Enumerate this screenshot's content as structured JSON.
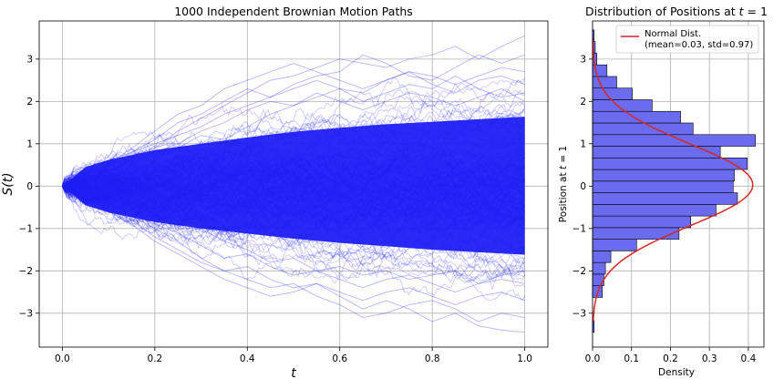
{
  "chart_data": [
    {
      "type": "line",
      "title": "1000 Independent Brownian Motion Paths",
      "xlabel": "t",
      "ylabel": "S(t)",
      "xlim": [
        -0.05,
        1.05
      ],
      "ylim": [
        -3.8,
        3.9
      ],
      "xticks": [
        0.0,
        0.2,
        0.4,
        0.6,
        0.8,
        1.0
      ],
      "xtick_labels": [
        "0.0",
        "0.2",
        "0.4",
        "0.6",
        "0.8",
        "1.0"
      ],
      "yticks": [
        -3,
        -2,
        -1,
        0,
        1,
        2,
        3
      ],
      "ytick_labels": [
        "−3",
        "−2",
        "−1",
        "0",
        "1",
        "2",
        "3"
      ],
      "grid": true,
      "n_paths": 1000,
      "path_color": "#1f1ff5",
      "path_alpha": 0.2,
      "core_envelope": {
        "t": [
          0.0,
          0.05,
          0.1,
          0.2,
          0.3,
          0.4,
          0.5,
          0.6,
          0.7,
          0.8,
          0.9,
          1.0
        ],
        "upper": [
          0.0,
          0.45,
          0.62,
          0.85,
          1.0,
          1.15,
          1.28,
          1.38,
          1.46,
          1.52,
          1.58,
          1.64
        ],
        "lower": [
          0.0,
          -0.45,
          -0.62,
          -0.85,
          -1.0,
          -1.12,
          -1.24,
          -1.34,
          -1.42,
          -1.5,
          -1.56,
          -1.62
        ]
      },
      "sample_paths": [
        {
          "t": [
            0,
            0.05,
            0.1,
            0.15,
            0.2,
            0.25,
            0.3,
            0.35,
            0.4,
            0.45,
            0.5,
            0.55,
            0.6,
            0.65,
            0.7,
            0.75,
            0.8,
            0.85,
            0.9,
            0.95,
            1.0
          ],
          "y": [
            0,
            0.2,
            0.45,
            0.7,
            0.9,
            1.3,
            1.6,
            1.9,
            2.2,
            2.5,
            2.6,
            2.8,
            3.0,
            2.9,
            2.8,
            3.0,
            3.1,
            3.3,
            3.0,
            3.3,
            3.55
          ]
        },
        {
          "t": [
            0,
            0.05,
            0.1,
            0.15,
            0.2,
            0.25,
            0.3,
            0.35,
            0.4,
            0.45,
            0.5,
            0.55,
            0.6,
            0.65,
            0.7,
            0.75,
            0.8,
            0.85,
            0.9,
            0.95,
            1.0
          ],
          "y": [
            0,
            0.3,
            0.6,
            0.8,
            1.1,
            1.5,
            1.7,
            2.0,
            2.3,
            2.1,
            2.4,
            2.6,
            2.7,
            3.1,
            2.9,
            2.6,
            2.5,
            2.8,
            3.1,
            2.9,
            3.1
          ]
        },
        {
          "t": [
            0,
            0.05,
            0.1,
            0.15,
            0.2,
            0.25,
            0.3,
            0.35,
            0.4,
            0.45,
            0.5,
            0.55,
            0.6,
            0.65,
            0.7,
            0.75,
            0.8,
            0.85,
            0.9,
            0.95,
            1.0
          ],
          "y": [
            0,
            0.25,
            0.5,
            0.9,
            1.3,
            1.7,
            1.9,
            2.3,
            2.5,
            2.7,
            2.9,
            2.7,
            2.5,
            2.3,
            2.5,
            2.7,
            2.6,
            2.4,
            2.6,
            2.8,
            2.7
          ]
        },
        {
          "t": [
            0,
            0.05,
            0.1,
            0.15,
            0.2,
            0.25,
            0.3,
            0.35,
            0.4,
            0.45,
            0.5,
            0.55,
            0.6,
            0.65,
            0.7,
            0.75,
            0.8,
            0.85,
            0.9,
            0.95,
            1.0
          ],
          "y": [
            0,
            0.15,
            0.35,
            0.6,
            0.8,
            1.0,
            1.3,
            1.5,
            1.8,
            2.0,
            1.9,
            2.1,
            2.3,
            2.2,
            2.5,
            2.7,
            2.4,
            2.2,
            2.5,
            2.6,
            2.4
          ]
        },
        {
          "t": [
            0,
            0.05,
            0.1,
            0.15,
            0.2,
            0.25,
            0.3,
            0.35,
            0.4,
            0.45,
            0.5,
            0.55,
            0.6,
            0.65,
            0.7,
            0.75,
            0.8,
            0.85,
            0.9,
            0.95,
            1.0
          ],
          "y": [
            0,
            0.3,
            0.5,
            0.8,
            1.0,
            1.2,
            1.4,
            1.7,
            1.9,
            2.1,
            2.3,
            2.5,
            2.3,
            2.0,
            2.2,
            2.4,
            2.3,
            2.6,
            2.3,
            2.1,
            2.2
          ]
        },
        {
          "t": [
            0,
            0.05,
            0.1,
            0.15,
            0.2,
            0.25,
            0.3,
            0.35,
            0.4,
            0.45,
            0.5,
            0.55,
            0.6,
            0.65,
            0.7,
            0.75,
            0.8,
            0.85,
            0.9,
            0.95,
            1.0
          ],
          "y": [
            0,
            -0.2,
            -0.45,
            -0.7,
            -1.0,
            -1.3,
            -1.7,
            -2.0,
            -1.9,
            -2.2,
            -2.4,
            -2.3,
            -2.6,
            -2.9,
            -2.7,
            -2.9,
            -3.2,
            -3.0,
            -3.3,
            -3.4,
            -3.45
          ]
        },
        {
          "t": [
            0,
            0.05,
            0.1,
            0.15,
            0.2,
            0.25,
            0.3,
            0.35,
            0.4,
            0.45,
            0.5,
            0.55,
            0.6,
            0.65,
            0.7,
            0.75,
            0.8,
            0.85,
            0.9,
            0.95,
            1.0
          ],
          "y": [
            0,
            -0.3,
            -0.5,
            -0.8,
            -1.2,
            -1.5,
            -1.8,
            -2.0,
            -2.2,
            -2.4,
            -2.3,
            -2.6,
            -2.8,
            -3.1,
            -3.0,
            -2.8,
            -2.7,
            -2.9,
            -3.2,
            -3.0,
            -3.1
          ]
        },
        {
          "t": [
            0,
            0.05,
            0.1,
            0.15,
            0.2,
            0.25,
            0.3,
            0.35,
            0.4,
            0.45,
            0.5,
            0.55,
            0.6,
            0.65,
            0.7,
            0.75,
            0.8,
            0.85,
            0.9,
            0.95,
            1.0
          ],
          "y": [
            0,
            -0.25,
            -0.6,
            -0.9,
            -1.3,
            -1.6,
            -1.9,
            -2.2,
            -2.4,
            -2.6,
            -2.5,
            -2.3,
            -2.5,
            -2.7,
            -2.5,
            -2.4,
            -2.6,
            -2.8,
            -2.6,
            -2.5,
            -2.7
          ]
        },
        {
          "t": [
            0,
            0.05,
            0.1,
            0.15,
            0.2,
            0.25,
            0.3,
            0.35,
            0.4,
            0.45,
            0.5,
            0.55,
            0.6,
            0.65,
            0.7,
            0.75,
            0.8,
            0.85,
            0.9,
            0.95,
            1.0
          ],
          "y": [
            0,
            -0.15,
            -0.4,
            -0.6,
            -0.9,
            -1.1,
            -1.4,
            -1.7,
            -1.6,
            -1.9,
            -2.1,
            -2.0,
            -2.2,
            -2.4,
            -2.2,
            -2.1,
            -2.3,
            -2.5,
            -2.3,
            -2.2,
            -2.3
          ]
        },
        {
          "t": [
            0,
            0.05,
            0.1,
            0.15,
            0.2,
            0.25,
            0.3,
            0.35,
            0.4,
            0.45,
            0.5,
            0.55,
            0.6,
            0.65,
            0.7,
            0.75,
            0.8,
            0.85,
            0.9,
            0.95,
            1.0
          ],
          "y": [
            0,
            0.2,
            0.4,
            0.3,
            0.6,
            0.9,
            1.2,
            1.1,
            1.4,
            1.7,
            1.9,
            2.2,
            2.0,
            1.8,
            2.0,
            2.2,
            2.1,
            1.9,
            2.1,
            2.3,
            2.0
          ]
        },
        {
          "t": [
            0,
            0.05,
            0.1,
            0.15,
            0.2,
            0.25,
            0.3,
            0.35,
            0.4,
            0.45,
            0.5,
            0.55,
            0.6,
            0.65,
            0.7,
            0.75,
            0.8,
            0.85,
            0.9,
            0.95,
            1.0
          ],
          "y": [
            0,
            -0.2,
            -0.3,
            -0.5,
            -0.8,
            -0.7,
            -1.0,
            -1.3,
            -1.5,
            -1.8,
            -1.7,
            -2.0,
            -1.9,
            -2.1,
            -2.0,
            -2.2,
            -2.1,
            -2.0,
            -2.3,
            -2.1,
            -2.0
          ]
        }
      ]
    },
    {
      "type": "bar",
      "orientation": "horizontal",
      "title": "Distribution of Positions at t = 1",
      "xlabel": "Density",
      "ylabel": "Position at t = 1",
      "xlim": [
        0,
        0.44
      ],
      "ylim": [
        -3.8,
        3.9
      ],
      "xticks": [
        0.0,
        0.1,
        0.2,
        0.3,
        0.4
      ],
      "xtick_labels": [
        "0.0",
        "0.1",
        "0.2",
        "0.3",
        "0.4"
      ],
      "yticks": [
        -3,
        -2,
        -1,
        0,
        1,
        2,
        3
      ],
      "ytick_labels": [
        "−3",
        "−2",
        "−1",
        "0",
        "1",
        "2",
        "3"
      ],
      "grid": true,
      "bar_color": "#6b6bf0",
      "bar_edge_color": "#000000",
      "bins_start": -3.45,
      "bin_width": 0.2745,
      "densities": [
        0.004,
        0.0,
        0.0,
        0.025,
        0.029,
        0.033,
        0.047,
        0.113,
        0.222,
        0.252,
        0.317,
        0.372,
        0.361,
        0.364,
        0.397,
        0.328,
        0.418,
        0.258,
        0.226,
        0.153,
        0.102,
        0.062,
        0.037,
        0.011,
        0.007,
        0.004
      ],
      "normal_fit": {
        "mean": 0.03,
        "std": 0.97,
        "color": "#d62728"
      },
      "legend": {
        "position": "top-right",
        "label_line1": "Normal Dist.",
        "label_line2": "(mean=0.03, std=0.97)"
      }
    }
  ]
}
